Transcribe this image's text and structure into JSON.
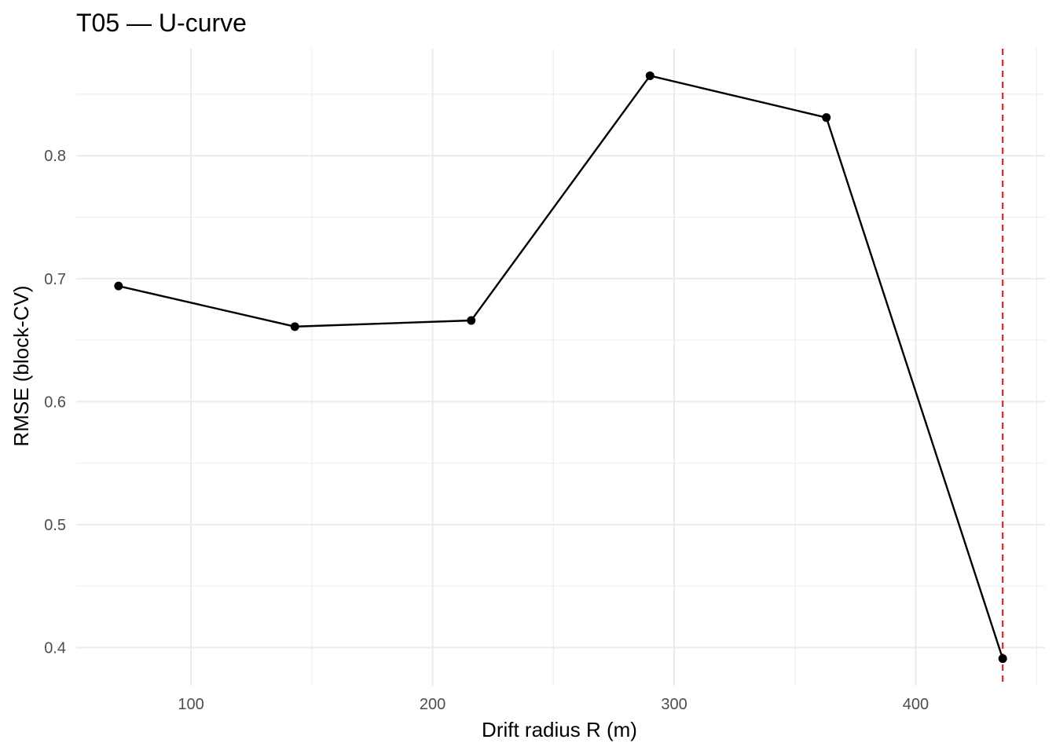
{
  "chart_data": {
    "type": "line",
    "title": "T05 — U-curve",
    "xlabel": "Drift radius R (m)",
    "ylabel": "RMSE (block-CV)",
    "x": [
      70,
      143,
      216,
      290,
      363,
      436
    ],
    "series": [
      {
        "values": [
          0.694,
          0.661,
          0.666,
          0.865,
          0.831,
          0.391
        ]
      }
    ],
    "xlim": [
      52.5,
      453.5
    ],
    "ylim": [
      0.369,
      0.887
    ],
    "x_ticks": [
      100,
      200,
      300,
      400
    ],
    "y_ticks": [
      0.4,
      0.5,
      0.6,
      0.7,
      0.8
    ],
    "x_tick_labels": [
      "100",
      "200",
      "300",
      "400"
    ],
    "y_tick_labels": [
      "0.4",
      "0.5",
      "0.6",
      "0.7",
      "0.8"
    ],
    "reference_line": {
      "orientation": "vertical",
      "x": 436,
      "style": "dashed"
    },
    "grid": true,
    "legend": "none",
    "colors": {
      "line": "#000000",
      "points": "#000000",
      "reference_line": "#d62728",
      "grid": "#ebebeb"
    }
  }
}
